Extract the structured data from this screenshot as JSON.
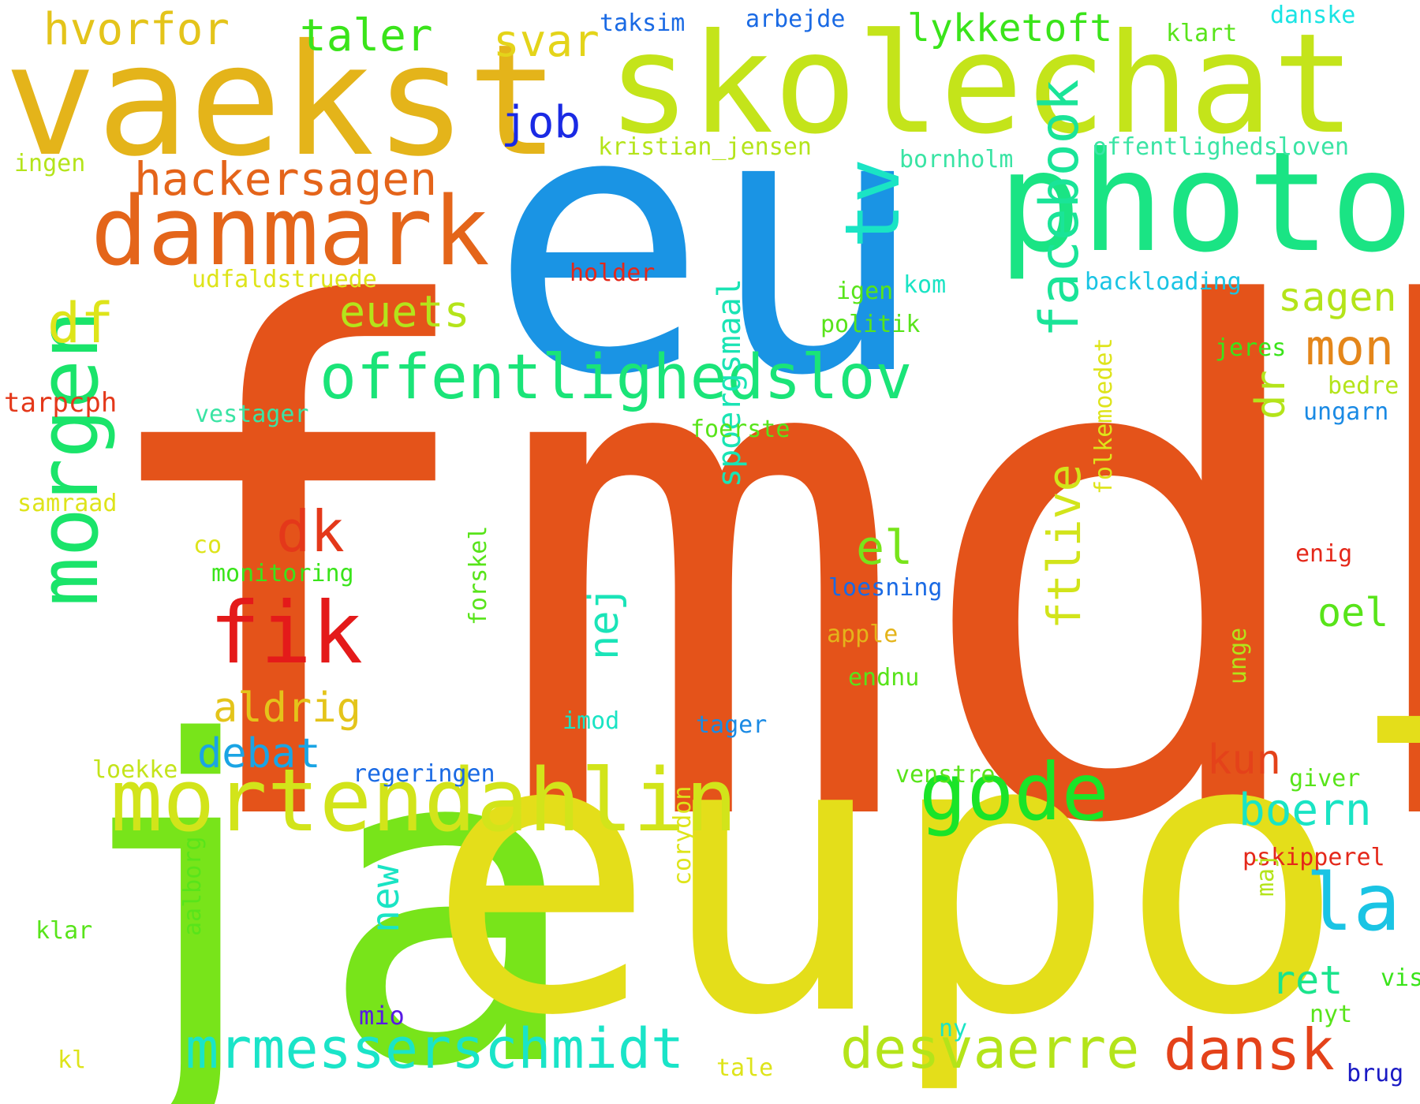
{
  "words": [
    {
      "text": "fmdk",
      "color": "#E4531A"
    },
    {
      "text": "eu",
      "color": "#1A94E4"
    },
    {
      "text": "ja",
      "color": "#78E41A"
    },
    {
      "text": "eupol",
      "color": "#E4DE1A"
    },
    {
      "text": "vaekst",
      "color": "#E4B41A"
    },
    {
      "text": "skolechat",
      "color": "#C4E41A"
    },
    {
      "text": "photo",
      "color": "#1AE484"
    },
    {
      "text": "danmark",
      "color": "#E4651A"
    },
    {
      "text": "tv",
      "color": "#1AE4C4"
    },
    {
      "text": "mortendahlin",
      "color": "#D2E41A"
    },
    {
      "text": "offentlighedslov",
      "color": "#1AE478"
    },
    {
      "text": "facebook",
      "color": "#1AE498"
    },
    {
      "text": "morgen",
      "color": "#1AE46A"
    },
    {
      "text": "fik",
      "color": "#E41A1A"
    },
    {
      "text": "gode",
      "color": "#1AE428"
    },
    {
      "text": "la",
      "color": "#1AC4E4"
    },
    {
      "text": "mrmesserschmidt",
      "color": "#1AE4C8"
    },
    {
      "text": "desvaerre",
      "color": "#B4E41A"
    },
    {
      "text": "dansk",
      "color": "#E4421A"
    },
    {
      "text": "hackersagen",
      "color": "#E4641A"
    },
    {
      "text": "hvorfor",
      "color": "#E4C41A"
    },
    {
      "text": "taler",
      "color": "#3AE41A"
    },
    {
      "text": "svar",
      "color": "#E4D41A"
    },
    {
      "text": "lykketoft",
      "color": "#3AE41A"
    },
    {
      "text": "job",
      "color": "#1A2AE4"
    },
    {
      "text": "df",
      "color": "#DEE41A"
    },
    {
      "text": "euets",
      "color": "#B4E41A"
    },
    {
      "text": "dk",
      "color": "#E4381A"
    },
    {
      "text": "el",
      "color": "#78E41A"
    },
    {
      "text": "ftlive",
      "color": "#D2E41A"
    },
    {
      "text": "dr",
      "color": "#B4E41A"
    },
    {
      "text": "mon",
      "color": "#E4861A"
    },
    {
      "text": "sagen",
      "color": "#B4E41A"
    },
    {
      "text": "aldrig",
      "color": "#E4C41A"
    },
    {
      "text": "debat",
      "color": "#1AA4E4"
    },
    {
      "text": "nej",
      "color": "#1AE4B8"
    },
    {
      "text": "new",
      "color": "#1AE4C4"
    },
    {
      "text": "spoergsmaal",
      "color": "#1AE4B4"
    },
    {
      "text": "kun",
      "color": "#E4421A"
    },
    {
      "text": "boern",
      "color": "#1AE4C4"
    },
    {
      "text": "oel",
      "color": "#58E41A"
    },
    {
      "text": "ret",
      "color": "#1AE48C"
    },
    {
      "text": "taksim",
      "color": "#1A6AE4"
    },
    {
      "text": "arbejde",
      "color": "#1A6AE4"
    },
    {
      "text": "danske",
      "color": "#1AE4E4"
    },
    {
      "text": "klart",
      "color": "#58E41A"
    },
    {
      "text": "kristian_jensen",
      "color": "#B4E41A"
    },
    {
      "text": "offentlighedsloven",
      "color": "#3AE4A4"
    },
    {
      "text": "bornholm",
      "color": "#3AE4A4"
    },
    {
      "text": "ingen",
      "color": "#B4E41A"
    },
    {
      "text": "udfaldstruede",
      "color": "#DEE41A"
    },
    {
      "text": "holder",
      "color": "#E4281A"
    },
    {
      "text": "igen",
      "color": "#58E41A"
    },
    {
      "text": "kom",
      "color": "#1AE4C4"
    },
    {
      "text": "backloading",
      "color": "#1AC4E4"
    },
    {
      "text": "politik",
      "color": "#58E41A"
    },
    {
      "text": "jeres",
      "color": "#3AE41A"
    },
    {
      "text": "bedre",
      "color": "#B4E41A"
    },
    {
      "text": "tarpcph",
      "color": "#E4381A"
    },
    {
      "text": "vestager",
      "color": "#3AE4A4"
    },
    {
      "text": "foerste",
      "color": "#58E41A"
    },
    {
      "text": "ungarn",
      "color": "#1A8AE4"
    },
    {
      "text": "samraad",
      "color": "#DEE41A"
    },
    {
      "text": "co",
      "color": "#DEE41A"
    },
    {
      "text": "monitoring",
      "color": "#3AE41A"
    },
    {
      "text": "loesning",
      "color": "#1A6AE4"
    },
    {
      "text": "enig",
      "color": "#E4281A"
    },
    {
      "text": "folkemoedet",
      "color": "#DEE41A"
    },
    {
      "text": "apple",
      "color": "#E4B41A"
    },
    {
      "text": "forskel",
      "color": "#58E41A"
    },
    {
      "text": "endnu",
      "color": "#58E41A"
    },
    {
      "text": "imod",
      "color": "#1AE4C4"
    },
    {
      "text": "tager",
      "color": "#1A8AE4"
    },
    {
      "text": "unge",
      "color": "#B4E41A"
    },
    {
      "text": "loekke",
      "color": "#C4E41A"
    },
    {
      "text": "regeringen",
      "color": "#1A6AE4"
    },
    {
      "text": "venstre",
      "color": "#58E41A"
    },
    {
      "text": "giver",
      "color": "#58E41A"
    },
    {
      "text": "pskipperel",
      "color": "#E4281A"
    },
    {
      "text": "corydon",
      "color": "#DEE41A"
    },
    {
      "text": "maj",
      "color": "#B4E41A"
    },
    {
      "text": "klar",
      "color": "#58E41A"
    },
    {
      "text": "aalborg",
      "color": "#58E41A"
    },
    {
      "text": "vist",
      "color": "#3AE41A"
    },
    {
      "text": "mio",
      "color": "#581AE4"
    },
    {
      "text": "nyt",
      "color": "#58E41A"
    },
    {
      "text": "ny",
      "color": "#1AE4C4"
    },
    {
      "text": "kl",
      "color": "#DEE41A"
    },
    {
      "text": "tale",
      "color": "#DEE41A"
    },
    {
      "text": "brug",
      "color": "#1A1AC4"
    }
  ]
}
